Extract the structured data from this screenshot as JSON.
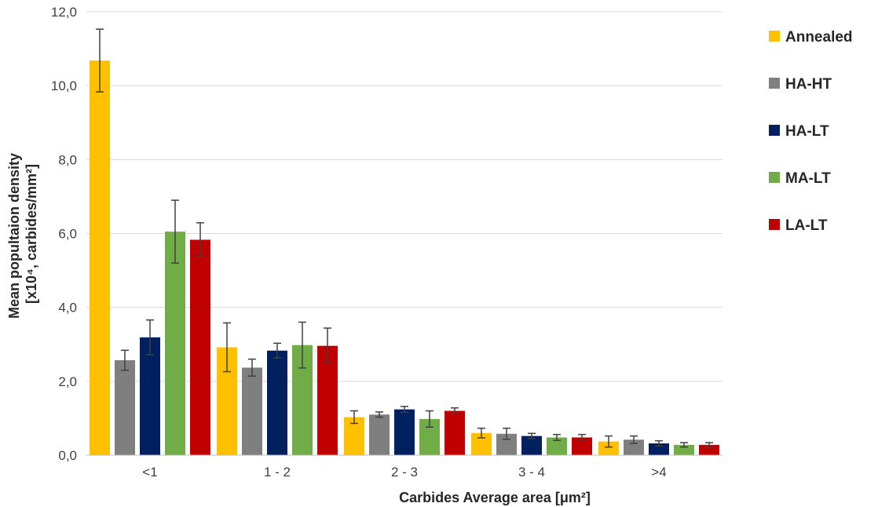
{
  "chart_data": {
    "type": "bar",
    "xlabel": "Carbides Average area [μm²]",
    "ylabel_line1": "Mean popultaion density",
    "ylabel_line2": "[x10⁴, carbides/mm²]",
    "ylim": [
      0,
      12
    ],
    "y_ticks": [
      "0,0",
      "2,0",
      "4,0",
      "6,0",
      "8,0",
      "10,0",
      "12,0"
    ],
    "y_tick_values": [
      0,
      2,
      4,
      6,
      8,
      10,
      12
    ],
    "grid": true,
    "legend_position": "top-right",
    "categories": [
      "<1",
      "1 - 2",
      "2 - 3",
      "3 - 4",
      ">4"
    ],
    "series": [
      {
        "name": "Annealed",
        "color": "#FFC000",
        "values": [
          10.68,
          2.92,
          1.03,
          0.6,
          0.37
        ],
        "errors": [
          0.85,
          0.66,
          0.17,
          0.13,
          0.15
        ]
      },
      {
        "name": "HA-HT",
        "color": "#7F7F7F",
        "values": [
          2.57,
          2.37,
          1.1,
          0.58,
          0.42
        ],
        "errors": [
          0.27,
          0.23,
          0.07,
          0.15,
          0.1
        ]
      },
      {
        "name": "HA-LT",
        "color": "#002060",
        "values": [
          3.19,
          2.83,
          1.24,
          0.52,
          0.32
        ],
        "errors": [
          0.47,
          0.2,
          0.08,
          0.07,
          0.07
        ]
      },
      {
        "name": "MA-LT",
        "color": "#70AD47",
        "values": [
          6.05,
          2.98,
          0.98,
          0.48,
          0.28
        ],
        "errors": [
          0.85,
          0.62,
          0.22,
          0.08,
          0.06
        ]
      },
      {
        "name": "LA-LT",
        "color": "#C00000",
        "values": [
          5.83,
          2.96,
          1.2,
          0.48,
          0.28
        ],
        "errors": [
          0.46,
          0.48,
          0.08,
          0.08,
          0.06
        ]
      }
    ]
  }
}
